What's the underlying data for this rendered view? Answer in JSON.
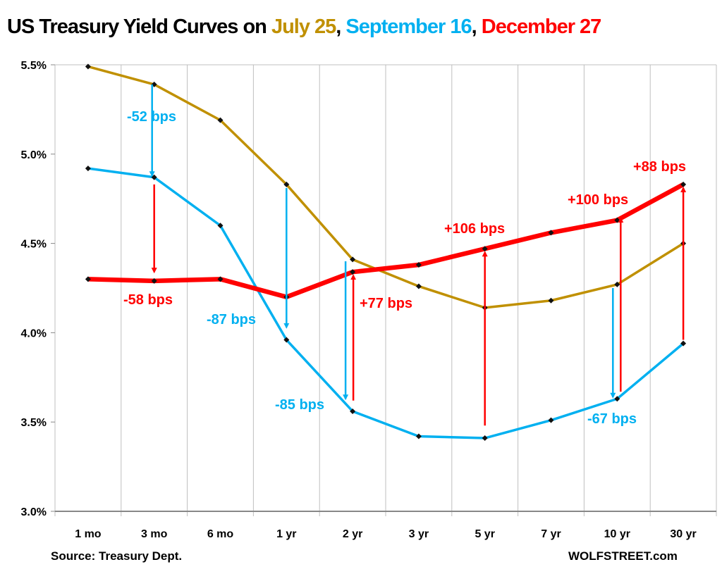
{
  "chart_data": {
    "type": "line",
    "title": {
      "prefix": "US Treasury Yield Curves on ",
      "parts": [
        {
          "text": "July 25",
          "color": "#C09000"
        },
        {
          "text": ", ",
          "color": "#000000"
        },
        {
          "text": "September 16",
          "color": "#00B0F0"
        },
        {
          "text": ", ",
          "color": "#000000"
        },
        {
          "text": "December 27",
          "color": "#FF0000"
        }
      ]
    },
    "categories": [
      "1 mo",
      "3 mo",
      "6 mo",
      "1 yr",
      "2 yr",
      "3 yr",
      "5 yr",
      "7 yr",
      "10 yr",
      "30 yr"
    ],
    "ylim": [
      3.0,
      5.5
    ],
    "yticks": [
      3.0,
      3.5,
      4.0,
      4.5,
      5.0,
      5.5
    ],
    "ytick_labels": [
      "3.0%",
      "3.5%",
      "4.0%",
      "4.5%",
      "5.0%",
      "5.5%"
    ],
    "grid": "vertical",
    "series": [
      {
        "name": "July 25",
        "color": "#C09000",
        "values": [
          5.49,
          5.39,
          5.19,
          4.83,
          4.41,
          4.26,
          4.14,
          4.18,
          4.27,
          4.5
        ]
      },
      {
        "name": "September 16",
        "color": "#00B0F0",
        "values": [
          4.92,
          4.87,
          4.6,
          3.96,
          3.56,
          3.42,
          3.41,
          3.51,
          3.63,
          3.94
        ]
      },
      {
        "name": "December 27",
        "color": "#FF0000",
        "values": [
          4.3,
          4.29,
          4.3,
          4.2,
          4.34,
          4.38,
          4.47,
          4.56,
          4.63,
          4.83
        ]
      }
    ],
    "annotations": [
      {
        "category": "3 mo",
        "from": 5.39,
        "to": 4.88,
        "color": "#00B0F0",
        "label": "-52 bps"
      },
      {
        "category": "3 mo",
        "from": 4.83,
        "to": 4.34,
        "color": "#FF0000",
        "label": "-58 bps"
      },
      {
        "category": "1 yr",
        "from": 4.81,
        "to": 4.03,
        "color": "#00B0F0",
        "label": "-87 bps"
      },
      {
        "category": "2 yr",
        "from": 4.4,
        "to": 3.63,
        "color": "#00B0F0",
        "label": "-85 bps"
      },
      {
        "category": "2 yr",
        "from": 3.62,
        "to": 4.32,
        "color": "#FF0000",
        "label": "+77 bps"
      },
      {
        "category": "5 yr",
        "from": 3.48,
        "to": 4.45,
        "color": "#FF0000",
        "label": "+106 bps"
      },
      {
        "category": "10 yr",
        "from": 4.25,
        "to": 3.64,
        "color": "#00B0F0",
        "label": "-67 bps"
      },
      {
        "category": "10 yr",
        "from": 3.67,
        "to": 4.64,
        "color": "#FF0000",
        "label": "+100 bps"
      },
      {
        "category": "30 yr",
        "from": 3.96,
        "to": 4.81,
        "color": "#FF0000",
        "label": "+88 bps"
      }
    ]
  },
  "footer": {
    "source": "Source: Treasury Dept.",
    "brand": "WOLFSTREET.com"
  }
}
